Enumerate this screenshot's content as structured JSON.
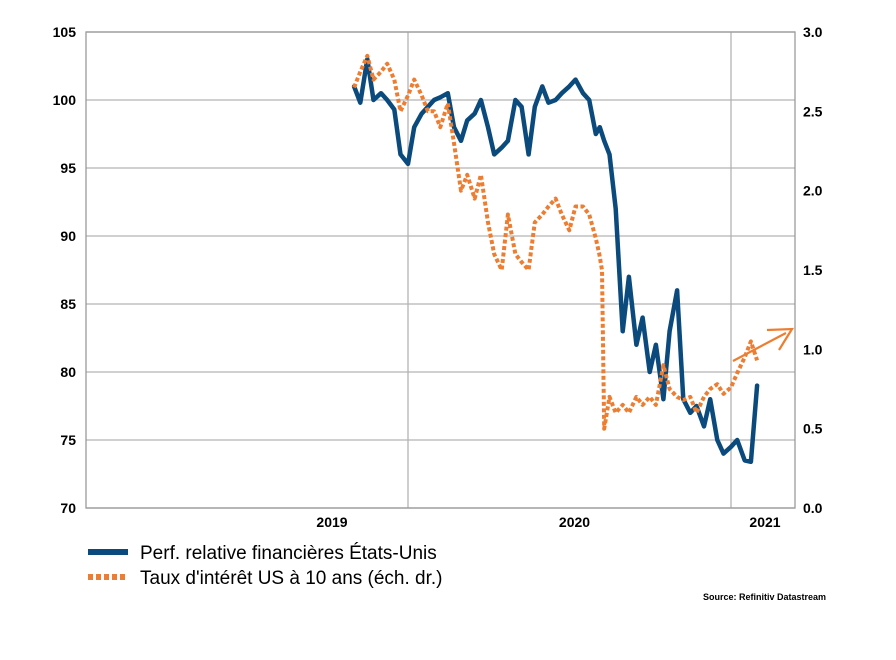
{
  "chart_data": {
    "type": "line",
    "title": "",
    "xlabel": "",
    "ylabel": "",
    "x_ticks": [
      "2019",
      "2020",
      "2021"
    ],
    "y_left": {
      "range": [
        70,
        105
      ],
      "ticks": [
        "70",
        "75",
        "80",
        "85",
        "90",
        "95",
        "100",
        "105"
      ]
    },
    "y_right": {
      "range": [
        0.0,
        3.0
      ],
      "ticks": [
        "0.0",
        "0.5",
        "1.0",
        "1.5",
        "2.0",
        "2.5",
        "3.0"
      ]
    },
    "grid": true,
    "legend_position": "bottom-left",
    "series": [
      {
        "name": "Perf. relative financières États-Unis",
        "axis": "left",
        "color": "#0b4a7d",
        "style": "solid",
        "x": [
          "2018-09-01",
          "2018-09-15",
          "2018-10-01",
          "2018-10-15",
          "2018-11-01",
          "2018-11-15",
          "2018-12-01",
          "2018-12-15",
          "2019-01-01",
          "2019-01-15",
          "2019-02-01",
          "2019-02-15",
          "2019-03-01",
          "2019-03-15",
          "2019-04-01",
          "2019-04-15",
          "2019-05-01",
          "2019-05-15",
          "2019-06-01",
          "2019-06-15",
          "2019-07-01",
          "2019-07-15",
          "2019-08-01",
          "2019-08-15",
          "2019-09-01",
          "2019-09-15",
          "2019-10-01",
          "2019-10-15",
          "2019-11-01",
          "2019-11-15",
          "2019-12-01",
          "2019-12-15",
          "2020-01-01",
          "2020-01-15",
          "2020-02-01",
          "2020-02-15",
          "2020-03-01",
          "2020-03-10",
          "2020-03-20",
          "2020-04-01",
          "2020-04-15",
          "2020-05-01",
          "2020-05-15",
          "2020-06-01",
          "2020-06-15",
          "2020-07-01",
          "2020-07-15",
          "2020-08-01",
          "2020-08-15",
          "2020-09-01",
          "2020-09-15",
          "2020-10-01",
          "2020-10-15",
          "2020-11-01",
          "2020-11-15",
          "2020-12-01",
          "2020-12-15",
          "2021-01-01",
          "2021-01-15",
          "2021-02-01",
          "2021-02-15",
          "2021-03-01"
        ],
        "y": [
          101,
          99.8,
          103,
          100,
          100.5,
          100,
          99.3,
          96,
          95.3,
          98,
          99,
          99.5,
          100,
          100.2,
          100.5,
          98,
          97,
          98.5,
          99,
          100,
          98,
          96,
          96.5,
          97,
          100,
          99.5,
          96,
          99.5,
          101,
          99.8,
          100,
          100.5,
          101,
          101.5,
          100.5,
          100,
          97.5,
          98,
          97,
          96,
          92,
          83,
          87,
          82,
          84,
          80,
          82,
          78,
          83,
          86,
          78,
          77,
          77.5,
          76,
          78,
          75,
          74,
          74.5,
          75,
          73.5,
          73.4,
          79
        ]
      },
      {
        "name": "Taux d'intérêt US à 10 ans (éch. dr.)",
        "axis": "right",
        "color": "#ed7d31",
        "style": "dotted",
        "x": [
          "2018-09-01",
          "2018-09-15",
          "2018-10-01",
          "2018-10-15",
          "2018-11-01",
          "2018-11-15",
          "2018-12-01",
          "2018-12-15",
          "2019-01-01",
          "2019-01-15",
          "2019-02-01",
          "2019-02-15",
          "2019-03-01",
          "2019-03-15",
          "2019-04-01",
          "2019-04-15",
          "2019-05-01",
          "2019-05-15",
          "2019-06-01",
          "2019-06-15",
          "2019-07-01",
          "2019-07-15",
          "2019-08-01",
          "2019-08-15",
          "2019-09-01",
          "2019-09-15",
          "2019-10-01",
          "2019-10-15",
          "2019-11-01",
          "2019-11-15",
          "2019-12-01",
          "2019-12-15",
          "2020-01-01",
          "2020-01-15",
          "2020-02-01",
          "2020-02-15",
          "2020-03-01",
          "2020-03-09",
          "2020-03-15",
          "2020-03-20",
          "2020-04-01",
          "2020-04-15",
          "2020-05-01",
          "2020-05-15",
          "2020-06-01",
          "2020-06-15",
          "2020-07-01",
          "2020-07-15",
          "2020-08-01",
          "2020-08-15",
          "2020-09-01",
          "2020-09-15",
          "2020-10-01",
          "2020-10-15",
          "2020-11-01",
          "2020-11-15",
          "2020-12-01",
          "2020-12-15",
          "2021-01-01",
          "2021-01-15",
          "2021-02-01",
          "2021-02-15",
          "2021-03-01"
        ],
        "y": [
          2.65,
          2.75,
          2.85,
          2.7,
          2.75,
          2.8,
          2.7,
          2.5,
          2.6,
          2.7,
          2.6,
          2.5,
          2.5,
          2.4,
          2.55,
          2.3,
          2.0,
          2.1,
          1.95,
          2.1,
          1.8,
          1.6,
          1.5,
          1.85,
          1.6,
          1.55,
          1.5,
          1.8,
          1.85,
          1.9,
          1.95,
          1.85,
          1.75,
          1.9,
          1.9,
          1.85,
          1.7,
          1.6,
          1.5,
          0.5,
          0.7,
          0.6,
          0.65,
          0.6,
          0.7,
          0.65,
          0.7,
          0.65,
          0.9,
          0.75,
          0.7,
          0.68,
          0.7,
          0.6,
          0.7,
          0.75,
          0.78,
          0.72,
          0.76,
          0.85,
          0.95,
          1.05,
          0.93
        ]
      }
    ],
    "annotation": {
      "text": "",
      "type": "arrow",
      "color": "#ed7d31"
    },
    "source": "Source: Refinitiv Datastream"
  }
}
